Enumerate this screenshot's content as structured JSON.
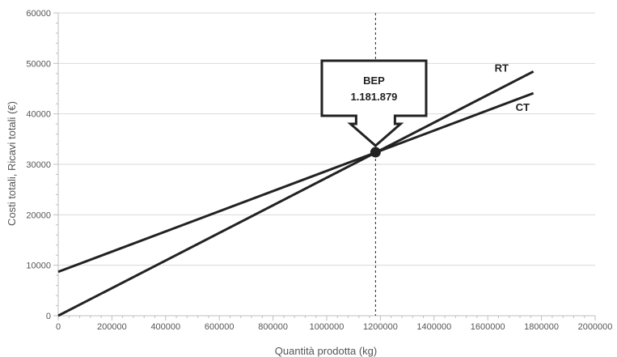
{
  "chart_data": {
    "type": "line",
    "xlabel": "Quantità prodotta (kg)",
    "ylabel": "Costi totali, Ricavi totali (€)",
    "xlim": [
      0,
      2000000
    ],
    "ylim": [
      0,
      60000
    ],
    "x_ticks": [
      "0",
      "200000",
      "400000",
      "600000",
      "800000",
      "1000000",
      "1200000",
      "1400000",
      "1600000",
      "1800000",
      "2000000"
    ],
    "y_ticks": [
      "0",
      "10000",
      "20000",
      "30000",
      "40000",
      "50000",
      "60000"
    ],
    "grid": "horizontal",
    "series": [
      {
        "name": "RT",
        "x": [
          0,
          1770000
        ],
        "y": [
          0,
          48400
        ]
      },
      {
        "name": "CT",
        "x": [
          0,
          1770000
        ],
        "y": [
          8700,
          44100
        ]
      }
    ],
    "break_even": {
      "x": 1181879,
      "y": 32400,
      "label_line1": "BEP",
      "label_line2": "1.181.879"
    },
    "colors": {
      "lines": "#222222",
      "grid": "#d9d9d9",
      "axis_text": "#555555"
    }
  }
}
